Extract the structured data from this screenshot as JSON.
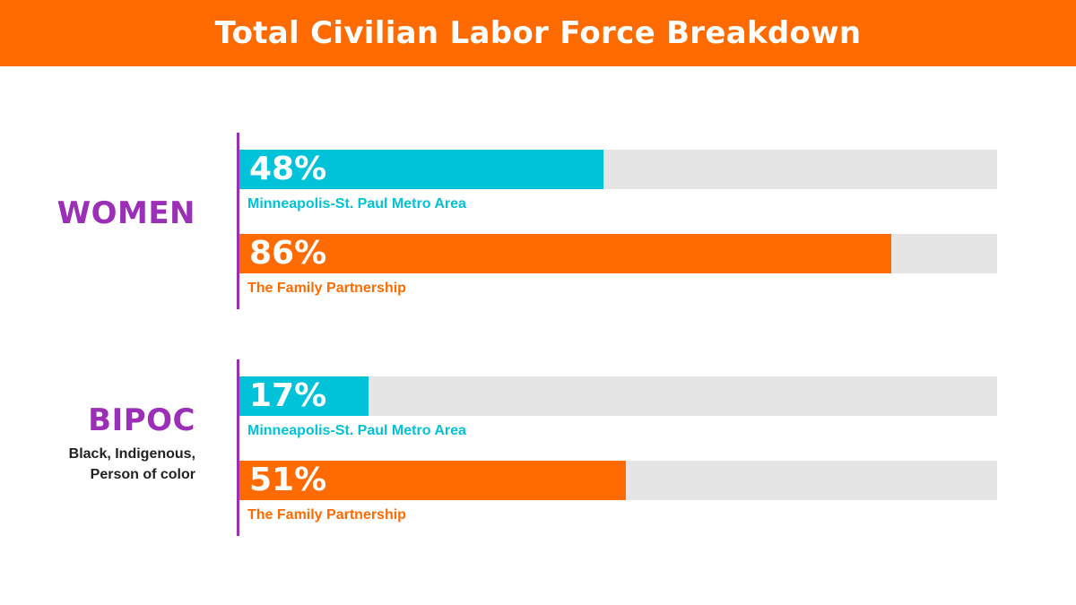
{
  "title": "Total Civilian Labor Force Breakdown",
  "colors": {
    "header": "#ff6b00",
    "metro": "#00c2d8",
    "family": "#ff6b00",
    "group_label": "#9b2fb7",
    "axis": "#9b2fb7",
    "track": "#e5e5e5"
  },
  "chart_data": {
    "type": "bar",
    "orientation": "horizontal",
    "title": "Total Civilian Labor Force Breakdown",
    "xlim": [
      0,
      100
    ],
    "unit": "%",
    "groups": [
      {
        "label": "WOMEN",
        "sublabel_lines": [],
        "bars": [
          {
            "name": "Minneapolis-St. Paul Metro Area",
            "value": 48,
            "value_label": "48%",
            "color": "#00c2d8"
          },
          {
            "name": "The Family Partnership",
            "value": 86,
            "value_label": "86%",
            "color": "#ff6b00"
          }
        ]
      },
      {
        "label": "BIPOC",
        "sublabel_lines": [
          "Black, Indigenous,",
          "Person of color"
        ],
        "bars": [
          {
            "name": "Minneapolis-St. Paul Metro Area",
            "value": 17,
            "value_label": "17%",
            "color": "#00c2d8"
          },
          {
            "name": "The Family Partnership",
            "value": 51,
            "value_label": "51%",
            "color": "#ff6b00"
          }
        ]
      }
    ]
  }
}
